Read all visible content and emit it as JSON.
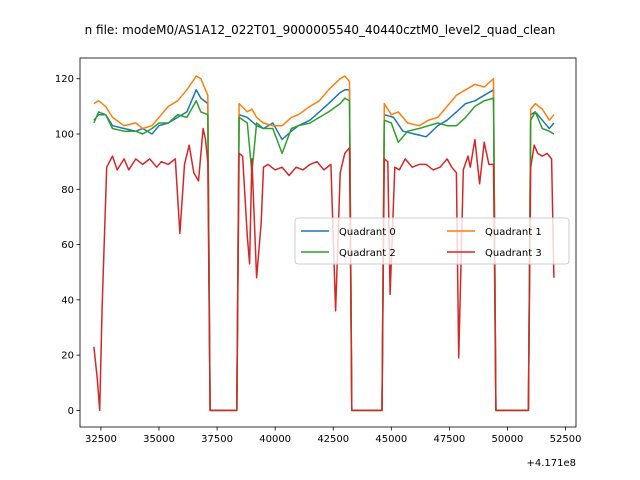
{
  "chart_data": {
    "type": "line",
    "title": "n file: modeM0/AS1A12_022T01_9000005540_40440cztM0_level2_quad_clean",
    "xlabel": "",
    "ylabel": "",
    "x_offset_label": "+4.171e8",
    "xlim": [
      31600,
      52950
    ],
    "ylim": [
      -6,
      127.5
    ],
    "xticks": [
      32500,
      35000,
      37500,
      40000,
      42500,
      45000,
      47500,
      50000,
      52500
    ],
    "yticks": [
      0,
      20,
      40,
      60,
      80,
      100,
      120
    ],
    "grid": false,
    "legend_position": "center-right",
    "legend_columns": 2,
    "series": [
      {
        "name": "Quadrant 0",
        "color": "#1f77b4",
        "points": [
          [
            32200,
            105
          ],
          [
            32400,
            107
          ],
          [
            32700,
            107
          ],
          [
            33000,
            103
          ],
          [
            33500,
            102
          ],
          [
            34000,
            101
          ],
          [
            34300,
            102
          ],
          [
            34700,
            100
          ],
          [
            35000,
            103
          ],
          [
            35400,
            104
          ],
          [
            35800,
            106
          ],
          [
            36200,
            108
          ],
          [
            36600,
            116
          ],
          [
            36800,
            113
          ],
          [
            37100,
            111
          ],
          [
            37200,
            0
          ],
          [
            38350,
            0
          ],
          [
            38450,
            107
          ],
          [
            38800,
            106
          ],
          [
            39200,
            103
          ],
          [
            39500,
            102
          ],
          [
            39900,
            104
          ],
          [
            40300,
            98
          ],
          [
            40700,
            101
          ],
          [
            41000,
            103
          ],
          [
            41500,
            105
          ],
          [
            41900,
            108
          ],
          [
            42300,
            111
          ],
          [
            42800,
            115
          ],
          [
            43000,
            116
          ],
          [
            43200,
            116
          ],
          [
            43300,
            0
          ],
          [
            44600,
            0
          ],
          [
            44700,
            107
          ],
          [
            45100,
            106
          ],
          [
            45500,
            101
          ],
          [
            46000,
            100
          ],
          [
            46500,
            99
          ],
          [
            47000,
            103
          ],
          [
            47400,
            105
          ],
          [
            47800,
            108
          ],
          [
            48200,
            111
          ],
          [
            48600,
            112
          ],
          [
            49000,
            114
          ],
          [
            49400,
            116
          ],
          [
            49500,
            0
          ],
          [
            50900,
            0
          ],
          [
            51000,
            107
          ],
          [
            51200,
            108
          ],
          [
            51500,
            105
          ],
          [
            51800,
            102
          ],
          [
            52000,
            104
          ]
        ]
      },
      {
        "name": "Quadrant 1",
        "color": "#ff7f0e",
        "points": [
          [
            32200,
            111
          ],
          [
            32400,
            112
          ],
          [
            32700,
            110
          ],
          [
            33000,
            106
          ],
          [
            33500,
            103
          ],
          [
            34000,
            104
          ],
          [
            34300,
            102
          ],
          [
            34700,
            103
          ],
          [
            35000,
            106
          ],
          [
            35400,
            110
          ],
          [
            35800,
            112
          ],
          [
            36200,
            116
          ],
          [
            36600,
            121
          ],
          [
            36800,
            120
          ],
          [
            37100,
            114
          ],
          [
            37200,
            0
          ],
          [
            38350,
            0
          ],
          [
            38450,
            111
          ],
          [
            38800,
            108
          ],
          [
            39000,
            109
          ],
          [
            39200,
            106
          ],
          [
            39500,
            104
          ],
          [
            39900,
            103
          ],
          [
            40300,
            103
          ],
          [
            40700,
            106
          ],
          [
            41000,
            107
          ],
          [
            41500,
            110
          ],
          [
            41900,
            112
          ],
          [
            42300,
            116
          ],
          [
            42800,
            120
          ],
          [
            43000,
            121
          ],
          [
            43200,
            119
          ],
          [
            43300,
            0
          ],
          [
            44600,
            0
          ],
          [
            44700,
            111
          ],
          [
            45000,
            107
          ],
          [
            45300,
            108
          ],
          [
            45700,
            104
          ],
          [
            46200,
            103
          ],
          [
            46600,
            105
          ],
          [
            47000,
            106
          ],
          [
            47400,
            110
          ],
          [
            47800,
            114
          ],
          [
            48200,
            116
          ],
          [
            48600,
            118
          ],
          [
            49000,
            117
          ],
          [
            49400,
            120
          ],
          [
            49500,
            0
          ],
          [
            50900,
            0
          ],
          [
            51000,
            109
          ],
          [
            51200,
            111
          ],
          [
            51500,
            109
          ],
          [
            51800,
            105
          ],
          [
            52000,
            107
          ]
        ]
      },
      {
        "name": "Quadrant 2",
        "color": "#2ca02c",
        "points": [
          [
            32200,
            104
          ],
          [
            32400,
            108
          ],
          [
            32700,
            107
          ],
          [
            33000,
            102
          ],
          [
            33500,
            101
          ],
          [
            34000,
            101
          ],
          [
            34300,
            100
          ],
          [
            34700,
            102
          ],
          [
            35000,
            104
          ],
          [
            35400,
            104
          ],
          [
            35800,
            107
          ],
          [
            36200,
            106
          ],
          [
            36600,
            112
          ],
          [
            36800,
            108
          ],
          [
            37100,
            107
          ],
          [
            37200,
            0
          ],
          [
            38350,
            0
          ],
          [
            38450,
            106
          ],
          [
            38800,
            104
          ],
          [
            39000,
            86
          ],
          [
            39200,
            104
          ],
          [
            39500,
            102
          ],
          [
            39900,
            102
          ],
          [
            40300,
            93
          ],
          [
            40700,
            102
          ],
          [
            41000,
            103
          ],
          [
            41500,
            104
          ],
          [
            41900,
            106
          ],
          [
            42300,
            108
          ],
          [
            42800,
            111
          ],
          [
            43000,
            113
          ],
          [
            43200,
            112
          ],
          [
            43300,
            0
          ],
          [
            44600,
            0
          ],
          [
            44700,
            105
          ],
          [
            45000,
            104
          ],
          [
            45300,
            97
          ],
          [
            45700,
            101
          ],
          [
            46200,
            102
          ],
          [
            46600,
            103
          ],
          [
            47000,
            104
          ],
          [
            47400,
            103
          ],
          [
            47800,
            103
          ],
          [
            48200,
            106
          ],
          [
            48600,
            110
          ],
          [
            49000,
            112
          ],
          [
            49400,
            113
          ],
          [
            49500,
            0
          ],
          [
            50900,
            0
          ],
          [
            51000,
            105
          ],
          [
            51200,
            108
          ],
          [
            51500,
            102
          ],
          [
            51800,
            101
          ],
          [
            52000,
            100
          ]
        ]
      },
      {
        "name": "Quadrant 3",
        "color": "#d62728",
        "points": [
          [
            32200,
            23
          ],
          [
            32350,
            11
          ],
          [
            32450,
            0
          ],
          [
            32550,
            37
          ],
          [
            32750,
            88
          ],
          [
            33000,
            92
          ],
          [
            33200,
            87
          ],
          [
            33500,
            91
          ],
          [
            33700,
            87
          ],
          [
            34000,
            91
          ],
          [
            34300,
            89
          ],
          [
            34600,
            91
          ],
          [
            34900,
            88
          ],
          [
            35100,
            90
          ],
          [
            35400,
            89
          ],
          [
            35700,
            91
          ],
          [
            35900,
            64
          ],
          [
            36100,
            89
          ],
          [
            36300,
            96
          ],
          [
            36500,
            86
          ],
          [
            36700,
            83
          ],
          [
            36900,
            102
          ],
          [
            37000,
            98
          ],
          [
            37100,
            90
          ],
          [
            37200,
            0
          ],
          [
            38350,
            0
          ],
          [
            38450,
            93
          ],
          [
            38600,
            92
          ],
          [
            38800,
            63
          ],
          [
            38900,
            53
          ],
          [
            39000,
            91
          ],
          [
            39200,
            48
          ],
          [
            39400,
            68
          ],
          [
            39500,
            88
          ],
          [
            39700,
            89
          ],
          [
            40000,
            87
          ],
          [
            40300,
            88
          ],
          [
            40600,
            85
          ],
          [
            40900,
            88
          ],
          [
            41200,
            87
          ],
          [
            41500,
            89
          ],
          [
            41800,
            90
          ],
          [
            42100,
            87
          ],
          [
            42400,
            89
          ],
          [
            42600,
            36
          ],
          [
            42800,
            86
          ],
          [
            43000,
            93
          ],
          [
            43200,
            95
          ],
          [
            43300,
            0
          ],
          [
            44600,
            0
          ],
          [
            44700,
            91
          ],
          [
            44850,
            90
          ],
          [
            44950,
            42
          ],
          [
            45150,
            88
          ],
          [
            45350,
            87
          ],
          [
            45600,
            91
          ],
          [
            45900,
            88
          ],
          [
            46200,
            89
          ],
          [
            46500,
            89
          ],
          [
            46800,
            87
          ],
          [
            47100,
            88
          ],
          [
            47400,
            91
          ],
          [
            47600,
            88
          ],
          [
            47800,
            86
          ],
          [
            47900,
            19
          ],
          [
            48100,
            87
          ],
          [
            48300,
            92
          ],
          [
            48400,
            88
          ],
          [
            48600,
            98
          ],
          [
            48800,
            82
          ],
          [
            49000,
            97
          ],
          [
            49200,
            89
          ],
          [
            49400,
            89
          ],
          [
            49500,
            0
          ],
          [
            50900,
            0
          ],
          [
            51000,
            88
          ],
          [
            51150,
            96
          ],
          [
            51300,
            93
          ],
          [
            51500,
            92
          ],
          [
            51700,
            93
          ],
          [
            51900,
            91
          ],
          [
            52000,
            48
          ]
        ]
      }
    ]
  }
}
